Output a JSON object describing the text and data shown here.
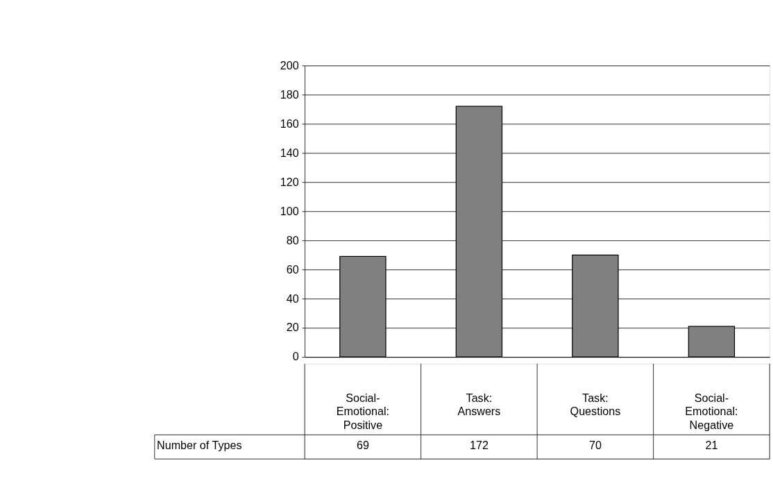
{
  "chart_data": {
    "type": "bar",
    "categories": [
      "Social-Emotional: Positive",
      "Task: Answers",
      "Task: Questions",
      "Social-Emotional: Negative"
    ],
    "series": [
      {
        "name": "Number of Types",
        "color": "#808080",
        "values": [
          69,
          172,
          70,
          21
        ]
      }
    ],
    "ylim": [
      0,
      200
    ],
    "yticks": [
      0,
      20,
      40,
      60,
      80,
      100,
      120,
      140,
      160,
      180,
      200
    ],
    "grid": "y",
    "data_labels": true
  }
}
